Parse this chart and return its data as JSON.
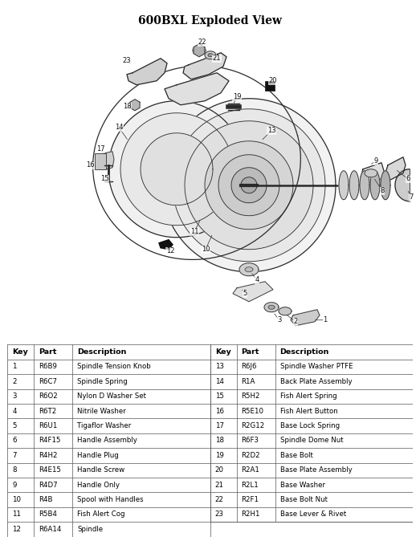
{
  "title": "600BXL Exploded View",
  "title_fontsize": 10,
  "title_fontweight": "bold",
  "background_color": "#f4f4f4",
  "table_header": [
    "Key",
    "Part",
    "Description",
    "Key",
    "Part",
    "Description"
  ],
  "table_data_left": [
    [
      "1",
      "R6B9",
      "Spindle Tension Knob"
    ],
    [
      "2",
      "R6C7",
      "Spindle Spring"
    ],
    [
      "3",
      "R6O2",
      "Nylon D Washer Set"
    ],
    [
      "4",
      "R6T2",
      "Nitrile Washer"
    ],
    [
      "5",
      "R6U1",
      "Tigaflor Washer"
    ],
    [
      "6",
      "R4F15",
      "Handle Assembly"
    ],
    [
      "7",
      "R4H2",
      "Handle Plug"
    ],
    [
      "8",
      "R4E15",
      "Handle Screw"
    ],
    [
      "9",
      "R4D7",
      "Handle Only"
    ],
    [
      "10",
      "R4B",
      "Spool with Handles"
    ],
    [
      "11",
      "R5B4",
      "Fish Alert Cog"
    ],
    [
      "12",
      "R6A14",
      "Spindle"
    ]
  ],
  "table_data_right": [
    [
      "13",
      "R6J6",
      "Spindle Washer PTFE"
    ],
    [
      "14",
      "R1A",
      "Back Plate Assembly"
    ],
    [
      "15",
      "R5H2",
      "Fish Alert Spring"
    ],
    [
      "16",
      "R5E10",
      "Fish Alert Button"
    ],
    [
      "17",
      "R2G12",
      "Base Lock Spring"
    ],
    [
      "18",
      "R6F3",
      "Spindle Dome Nut"
    ],
    [
      "19",
      "R2D2",
      "Base Bolt"
    ],
    [
      "20",
      "R2A1",
      "Base Plate Assembly"
    ],
    [
      "21",
      "R2L1",
      "Base Washer"
    ],
    [
      "22",
      "R2F1",
      "Base Bolt Nut"
    ],
    [
      "23",
      "R2H1",
      "Base Lever & Rivet"
    ],
    [
      "",
      "",
      ""
    ]
  ],
  "fig_width": 5.23,
  "fig_height": 6.74,
  "dpi": 100
}
